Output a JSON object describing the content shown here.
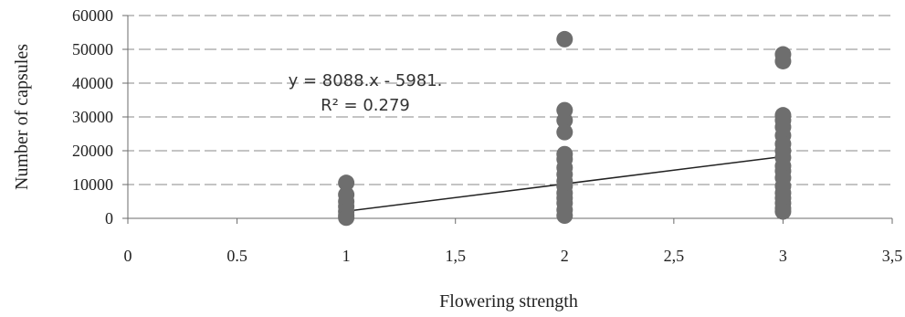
{
  "chart_data": {
    "type": "scatter",
    "xlabel": "Flowering strength",
    "ylabel": "Number of capsules",
    "xlim": [
      0,
      3.5
    ],
    "ylim": [
      0,
      60000
    ],
    "x_ticks": [
      {
        "value": 0,
        "label": "0"
      },
      {
        "value": 0.5,
        "label": "0.5"
      },
      {
        "value": 1,
        "label": "1"
      },
      {
        "value": 1.5,
        "label": "1,5"
      },
      {
        "value": 2,
        "label": "2"
      },
      {
        "value": 2.5,
        "label": "2,5"
      },
      {
        "value": 3,
        "label": "3"
      },
      {
        "value": 3.5,
        "label": "3,5"
      }
    ],
    "y_ticks": [
      {
        "value": 0,
        "label": "0"
      },
      {
        "value": 10000,
        "label": "10000"
      },
      {
        "value": 20000,
        "label": "20000"
      },
      {
        "value": 30000,
        "label": "30000"
      },
      {
        "value": 40000,
        "label": "40000"
      },
      {
        "value": 50000,
        "label": "50000"
      },
      {
        "value": 60000,
        "label": "60000"
      }
    ],
    "grid": {
      "horizontal": true,
      "vertical": false
    },
    "legend": "none",
    "series": [
      {
        "points": [
          {
            "x": 1,
            "y": 10500
          },
          {
            "x": 1,
            "y": 7000
          },
          {
            "x": 1,
            "y": 5000
          },
          {
            "x": 1,
            "y": 3500
          },
          {
            "x": 1,
            "y": 2000
          },
          {
            "x": 1,
            "y": 800
          },
          {
            "x": 1,
            "y": 200
          },
          {
            "x": 2,
            "y": 53000
          },
          {
            "x": 2,
            "y": 32000
          },
          {
            "x": 2,
            "y": 29000
          },
          {
            "x": 2,
            "y": 25500
          },
          {
            "x": 2,
            "y": 19000
          },
          {
            "x": 2,
            "y": 17500
          },
          {
            "x": 2,
            "y": 15000
          },
          {
            "x": 2,
            "y": 13000
          },
          {
            "x": 2,
            "y": 11000
          },
          {
            "x": 2,
            "y": 9500
          },
          {
            "x": 2,
            "y": 7500
          },
          {
            "x": 2,
            "y": 6000
          },
          {
            "x": 2,
            "y": 4500
          },
          {
            "x": 2,
            "y": 2500
          },
          {
            "x": 2,
            "y": 800
          },
          {
            "x": 3,
            "y": 48500
          },
          {
            "x": 3,
            "y": 46500
          },
          {
            "x": 3,
            "y": 30500
          },
          {
            "x": 3,
            "y": 29000
          },
          {
            "x": 3,
            "y": 27000
          },
          {
            "x": 3,
            "y": 24500
          },
          {
            "x": 3,
            "y": 22000
          },
          {
            "x": 3,
            "y": 20000
          },
          {
            "x": 3,
            "y": 18000
          },
          {
            "x": 3,
            "y": 15500
          },
          {
            "x": 3,
            "y": 14000
          },
          {
            "x": 3,
            "y": 12000
          },
          {
            "x": 3,
            "y": 9500
          },
          {
            "x": 3,
            "y": 7500
          },
          {
            "x": 3,
            "y": 6000
          },
          {
            "x": 3,
            "y": 4500
          },
          {
            "x": 3,
            "y": 3000
          },
          {
            "x": 3,
            "y": 2000
          }
        ]
      }
    ],
    "trendline": {
      "slope": 8088,
      "intercept": -5981,
      "x_range": [
        1,
        3
      ]
    },
    "annotations": {
      "equation": "y = 8088.x - 5981.",
      "r_squared": "R² = 0.279"
    }
  }
}
